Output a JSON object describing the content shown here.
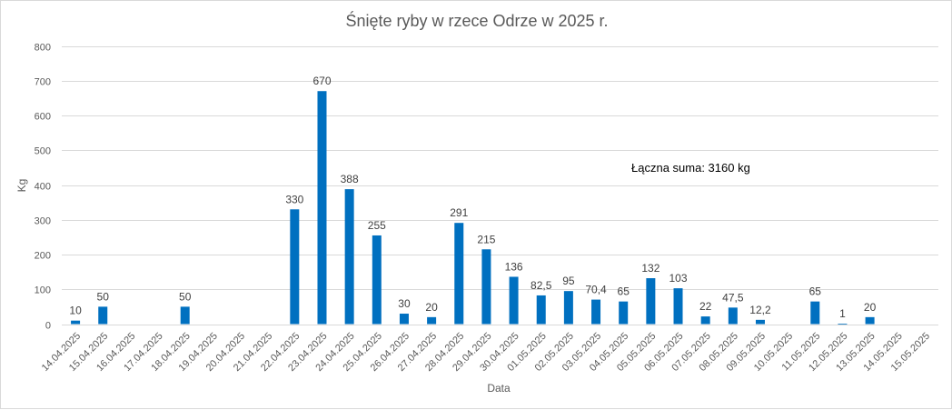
{
  "chart_data": {
    "type": "bar",
    "title": "Śnięte ryby w rzece Odrze w 2025 r.",
    "xlabel": "Data",
    "ylabel": "Kg",
    "ylim": [
      0,
      800
    ],
    "yticks": [
      0,
      100,
      200,
      300,
      400,
      500,
      600,
      700,
      800
    ],
    "grid": true,
    "legend": "none",
    "bar_color": "#0070C0",
    "annotation": "Łączna suma: 3160 kg",
    "categories": [
      "14.04.2025",
      "15.04.2025",
      "16.04.2025",
      "17.04.2025",
      "18.04.2025",
      "19.04.2025",
      "20.04.2025",
      "21.04.2025",
      "22.04.2025",
      "23.04.2025",
      "24.04.2025",
      "25.04.2025",
      "26.04.2025",
      "27.04.2025",
      "28.04.2025",
      "29.04.2025",
      "30.04.2025",
      "01.05.2025",
      "02.05.2025",
      "03.05.2025",
      "04.05.2025",
      "05.05.2025",
      "06.05.2025",
      "07.05.2025",
      "08.05.2025",
      "09.05.2025",
      "10.05.2025",
      "11.05.2025",
      "12.05.2025",
      "13.05.2025",
      "14.05.2025",
      "15.05.2025"
    ],
    "values": [
      10,
      50,
      null,
      null,
      50,
      null,
      null,
      null,
      330,
      670,
      388,
      255,
      30,
      20,
      291,
      215,
      136,
      82.5,
      95,
      70.4,
      65,
      132,
      103,
      22,
      47.5,
      12.2,
      null,
      65,
      1,
      20,
      null,
      null
    ],
    "data_labels": [
      "10",
      "50",
      "",
      "",
      "50",
      "",
      "",
      "",
      "330",
      "670",
      "388",
      "255",
      "30",
      "20",
      "291",
      "215",
      "136",
      "82,5",
      "95",
      "70,4",
      "65",
      "132",
      "103",
      "22",
      "47,5",
      "12,2",
      "",
      "65",
      "1",
      "20",
      "",
      ""
    ]
  }
}
